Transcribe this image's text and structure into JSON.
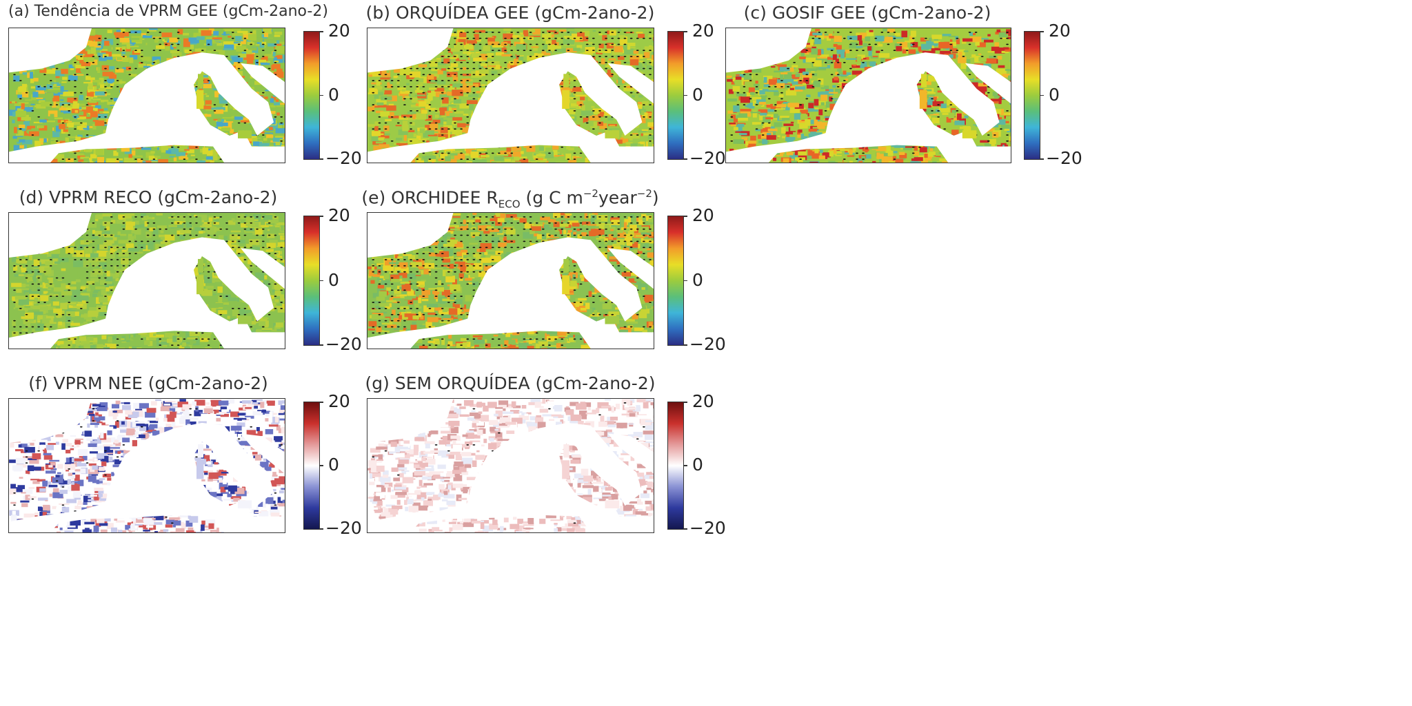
{
  "figure": {
    "colormaps": {
      "jet": [
        "#2b2e84",
        "#2f6fc0",
        "#3fb5d8",
        "#5bbf7a",
        "#9ccc3e",
        "#e8de27",
        "#f29c2a",
        "#d8302a",
        "#8e1a1a"
      ],
      "bwr": [
        "#14174f",
        "#2e3a9e",
        "#8a92d4",
        "#ffffff",
        "#e49a9a",
        "#c9302c",
        "#6e0f0f"
      ]
    },
    "colorbar_ticks": [
      "20",
      "0",
      "−20"
    ],
    "panels": [
      {
        "id": "a",
        "title": "(a) Tendência de VPRM GEE (gCm-2ano-2)",
        "cmap": "jet",
        "palette": [
          "#8fc44a",
          "#a8cc3c",
          "#d8d82b",
          "#f2c12a",
          "#eb7a26",
          "#5cb8a8",
          "#49a7c8",
          "#b9d138"
        ],
        "dot_density": 0.35
      },
      {
        "id": "b",
        "title": "(b) ORQUÍDEA GEE (gCm-2ano-2)",
        "cmap": "jet",
        "palette": [
          "#9dcb47",
          "#b9d13a",
          "#e3d62a",
          "#f0a82a",
          "#e46a27",
          "#86c35a",
          "#cfd830"
        ],
        "dot_density": 0.8
      },
      {
        "id": "c",
        "title": "(c) GOSIF GEE (gCm-2ano-2)",
        "cmap": "jet",
        "palette": [
          "#a4cc40",
          "#d8d82b",
          "#f2b62a",
          "#e86527",
          "#cc2a27",
          "#7fc05c",
          "#5eb8a0"
        ],
        "dot_density": 0.3
      },
      {
        "id": "d",
        "title": "(d) VPRM RECO (gCm-2ano-2)",
        "cmap": "jet",
        "palette": [
          "#8cc24f",
          "#9fc948",
          "#b7cf3c",
          "#d4d52d",
          "#7bbd62",
          "#a6cb42"
        ],
        "dot_density": 0.6
      },
      {
        "id": "e",
        "title_main": "(e) ORCHIDEE R",
        "title_sub": "ECO",
        "title_mid": " (g C m",
        "title_sup1": "−2",
        "title_mid2": "year",
        "title_sup2": "−2",
        "title_end": ")",
        "cmap": "jet",
        "palette": [
          "#8bc253",
          "#a3ca45",
          "#e6d52a",
          "#f09e2a",
          "#e46a27",
          "#79bc66",
          "#c8d434"
        ],
        "dot_density": 0.85
      },
      {
        "id": "f",
        "title": "(f) VPRM NEE (gCm-2ano-2)",
        "cmap": "bwr",
        "palette": [
          "#ffffff",
          "#f4f4fb",
          "#c7caec",
          "#6b74c4",
          "#2e3a9e",
          "#e8b3b3",
          "#d25656",
          "#fbe9e9"
        ],
        "dot_density": 0.1
      },
      {
        "id": "g",
        "title": "(g) SEM ORQUÍDEA (gCm-2ano-2)",
        "cmap": "bwr",
        "palette": [
          "#ffffff",
          "#fbeaea",
          "#f5d3d3",
          "#ecbcbc",
          "#e7eaf7",
          "#d9a0a0"
        ],
        "dot_density": 0.05
      }
    ]
  }
}
